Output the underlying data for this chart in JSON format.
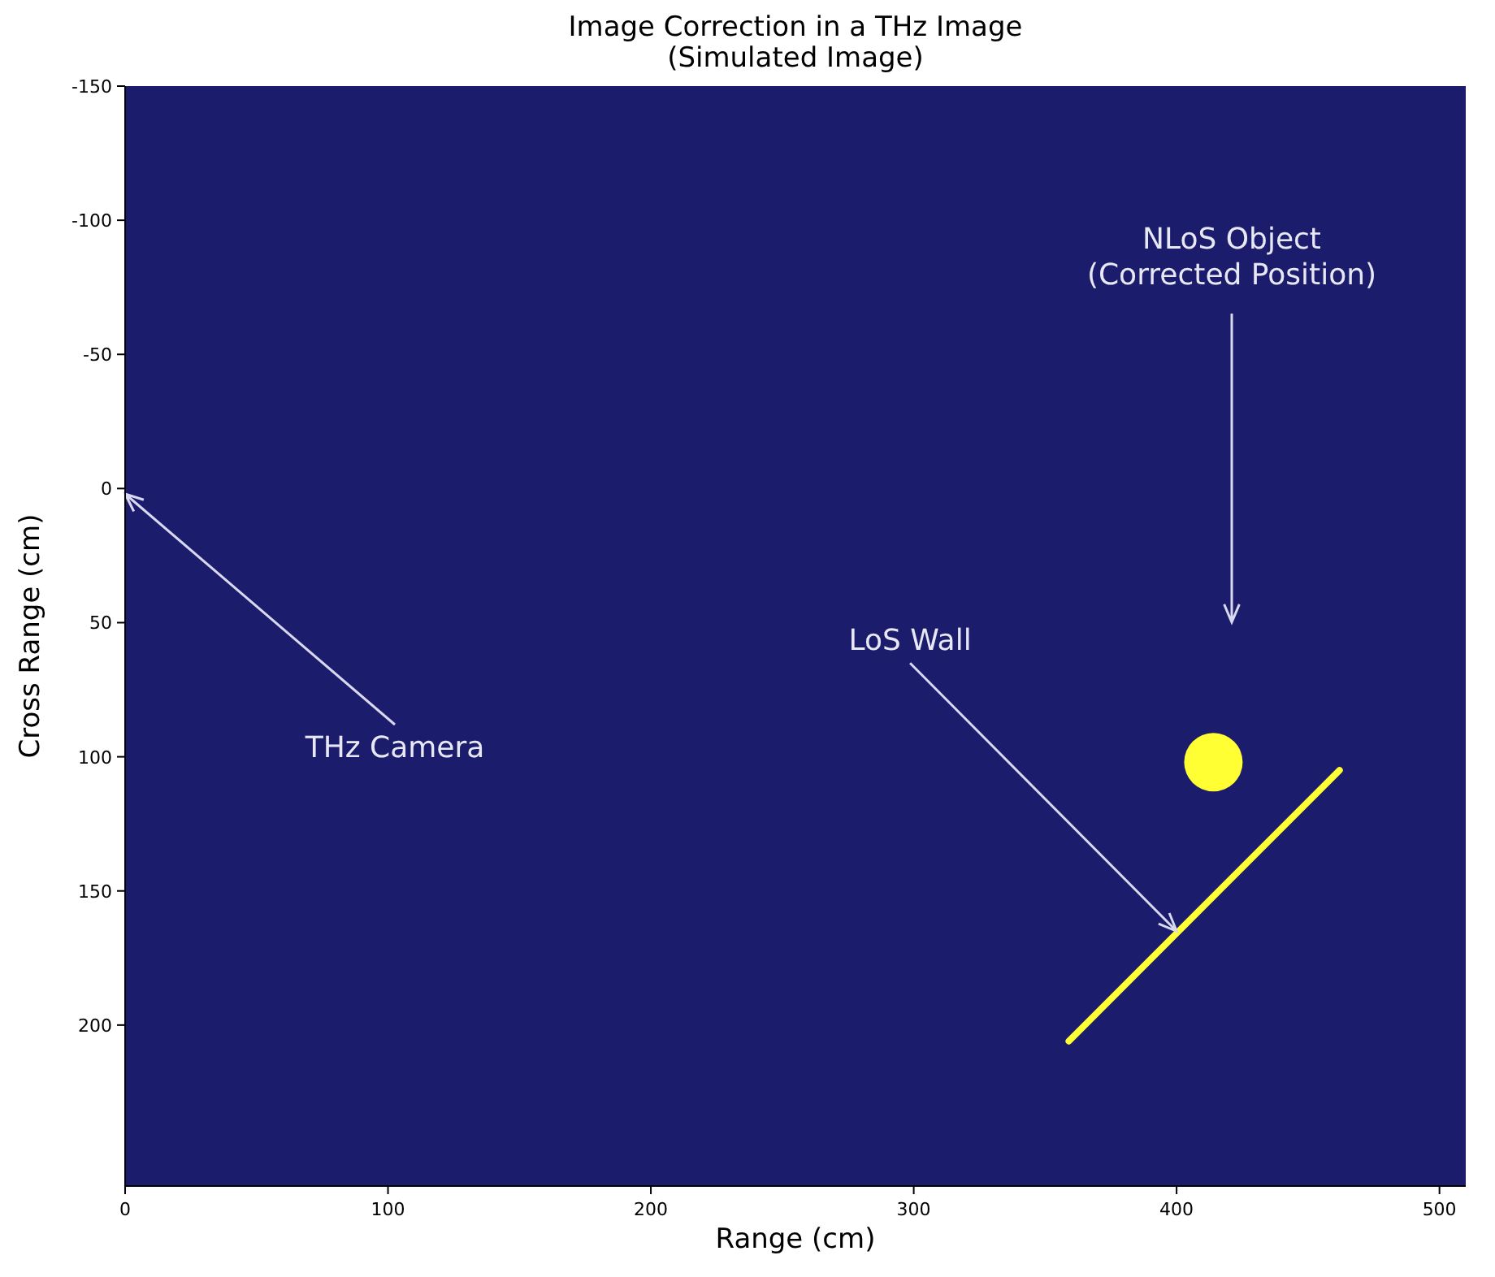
{
  "chart_data": {
    "type": "scatter",
    "title": "Image Correction in a THz Image\n(Simulated Image)",
    "xlabel": "Range (cm)",
    "ylabel": "Cross Range (cm)",
    "xlim": [
      0,
      510
    ],
    "ylim": [
      260,
      -150
    ],
    "xticks": [
      0,
      100,
      200,
      300,
      400,
      500
    ],
    "yticks": [
      -150,
      -100,
      -50,
      0,
      50,
      100,
      150,
      200
    ],
    "grid": false,
    "series": [
      {
        "type": "line",
        "color": "#ffff33",
        "x": [
          359,
          462
        ],
        "values": [
          206,
          105
        ]
      },
      {
        "color": "#ffff33",
        "marker": "circle",
        "x": [
          414
        ],
        "values": [
          102
        ]
      }
    ],
    "annotations": [
      "THz Camera",
      "NLoS Object\n(Corrected Position)",
      {
        "text": "LoS Wall",
        "x": 400,
        "y": 165
      }
    ]
  }
}
